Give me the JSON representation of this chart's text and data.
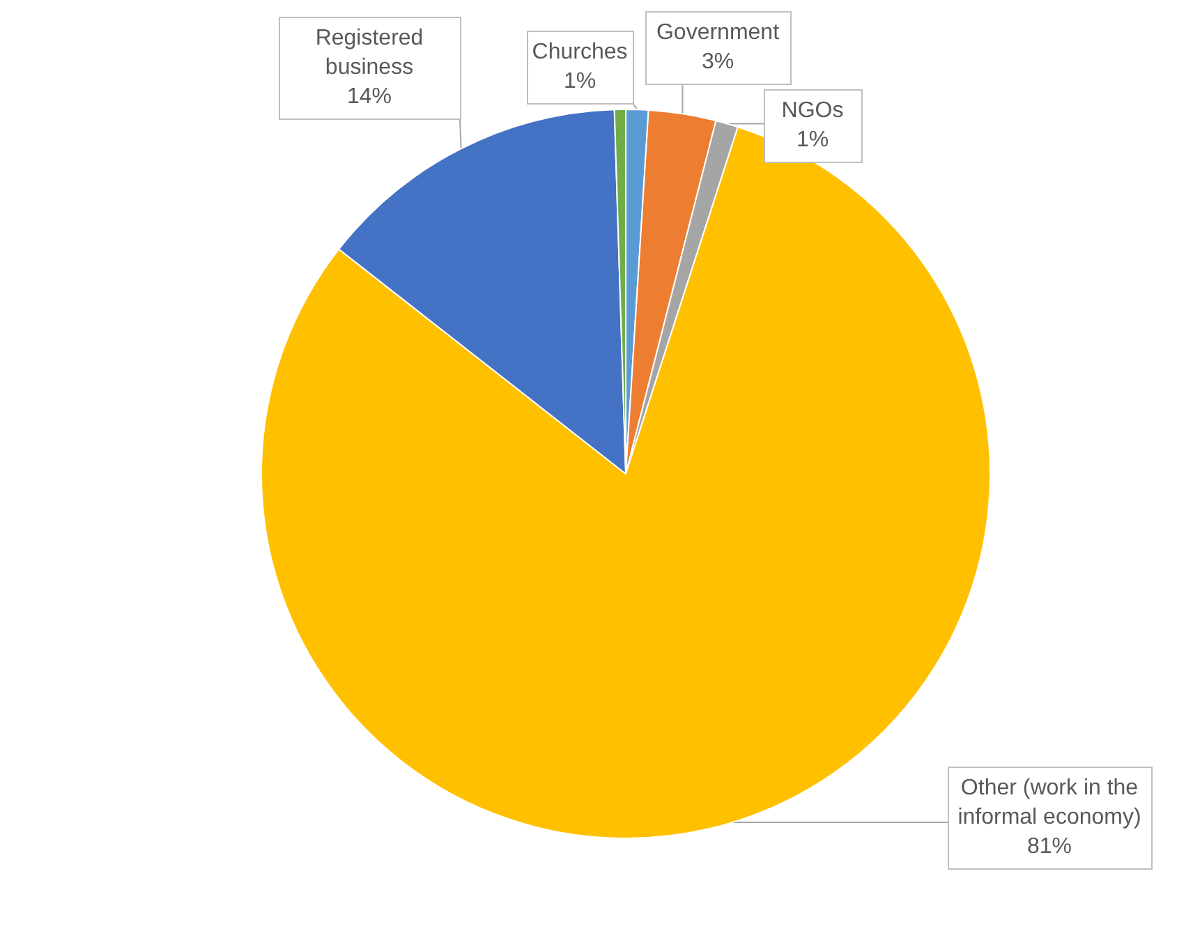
{
  "chart_data": {
    "type": "pie",
    "categories": [
      "Churches",
      "Government",
      "NGOs",
      "Other (work in the informal economy)",
      "Registered business",
      null
    ],
    "values": [
      1,
      3,
      1,
      81,
      14,
      0.5
    ],
    "colors": [
      "#5b9bd5",
      "#ed7d31",
      "#a5a5a5",
      "#ffc000",
      "#4472c4",
      "#70ad47"
    ],
    "value_labels": [
      "1%",
      "3%",
      "1%",
      "81%",
      "14%",
      null
    ],
    "legend": false
  }
}
